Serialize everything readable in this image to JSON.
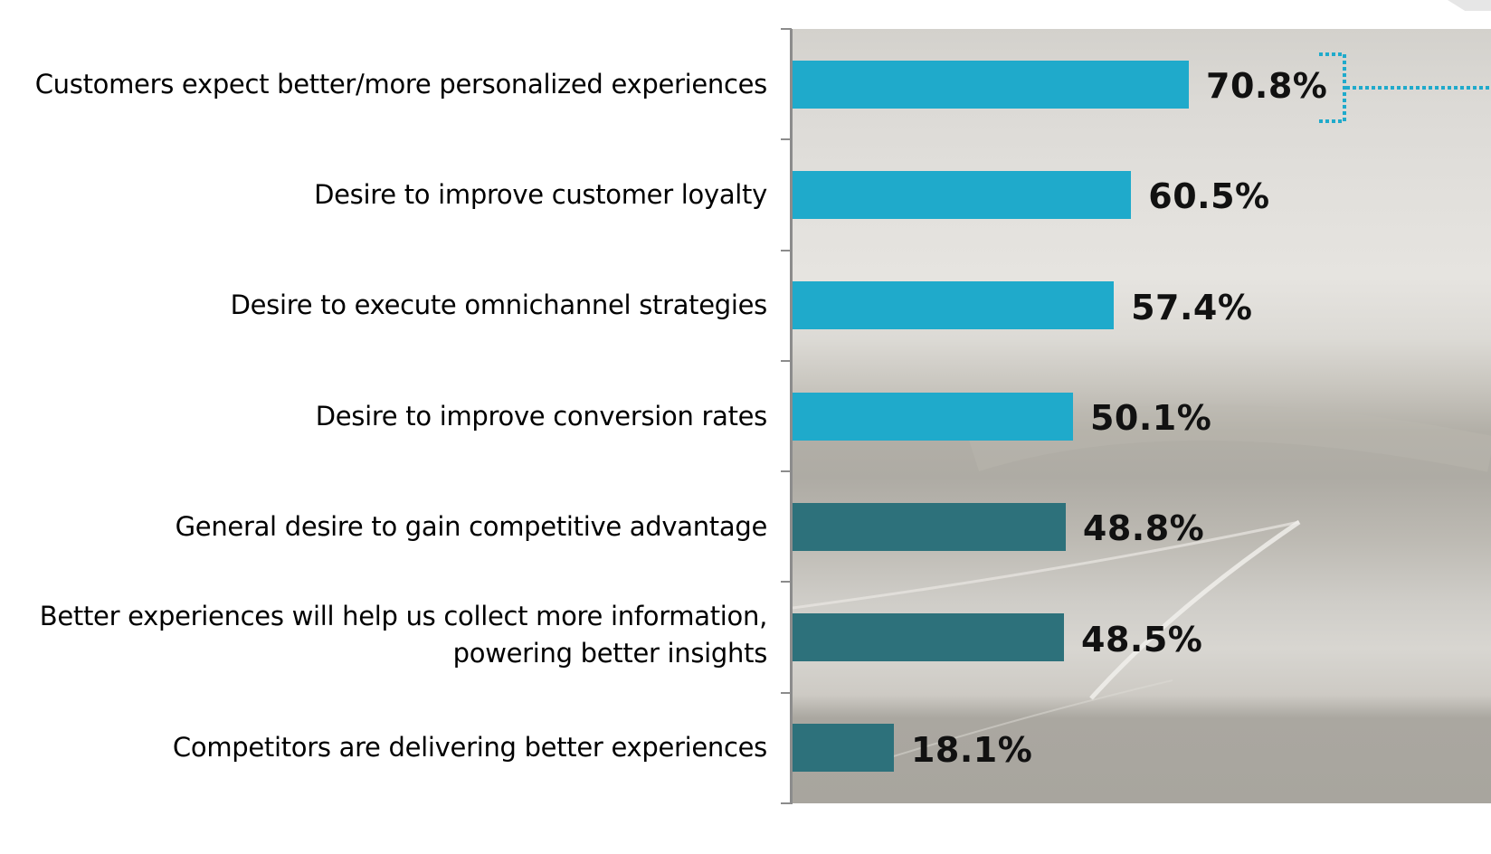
{
  "chart_data": {
    "type": "bar",
    "orientation": "horizontal",
    "title": "",
    "xlabel": "",
    "ylabel": "",
    "xlim": [
      0,
      100
    ],
    "grid": false,
    "legend": "none",
    "categories": [
      "Customers expect better/more personalized experiences",
      "Desire to improve customer loyalty",
      "Desire to execute omnichannel strategies",
      "Desire to improve conversion rates",
      "General desire to gain competitive advantage",
      "Better experiences will help us collect more information, powering better insights",
      "Competitors are delivering better experiences"
    ],
    "category_lines": [
      [
        "Customers expect better/more personalized experiences"
      ],
      [
        "Desire to improve customer loyalty"
      ],
      [
        "Desire to execute omnichannel strategies"
      ],
      [
        "Desire to improve conversion rates"
      ],
      [
        "General desire to gain competitive advantage"
      ],
      [
        "Better experiences will help us collect more information,",
        "powering better insights"
      ],
      [
        "Competitors are delivering better experiences"
      ]
    ],
    "values": [
      70.8,
      60.5,
      57.4,
      50.1,
      48.8,
      48.5,
      18.1
    ],
    "value_labels": [
      "70.8%",
      "60.5%",
      "57.4%",
      "50.1%",
      "48.8%",
      "48.5%",
      "18.1%"
    ],
    "bar_groups": [
      "highlight",
      "highlight",
      "highlight",
      "highlight",
      "standard",
      "standard",
      "standard"
    ],
    "colors": {
      "highlight": "#1FAACB",
      "standard": "#2D717B",
      "axis": "#8C8C8C",
      "bracket": "#1FAACB",
      "value_text": "#111111"
    },
    "annotation": "dotted bracket connector on top bar value"
  }
}
